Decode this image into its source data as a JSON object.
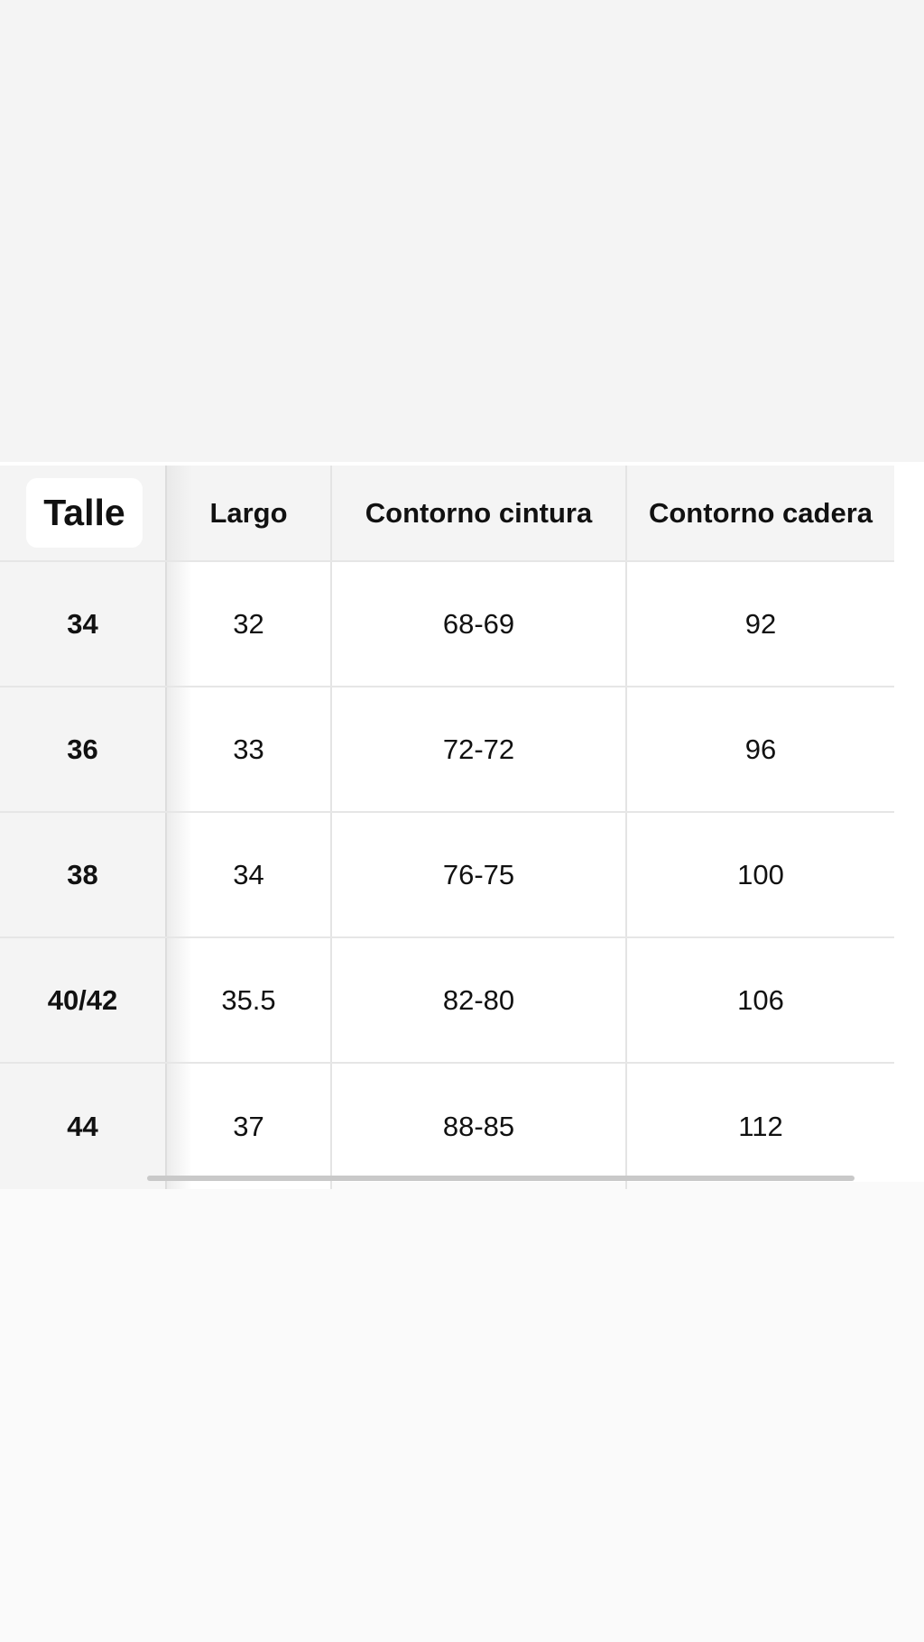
{
  "table": {
    "headers": [
      "Talle",
      "Largo",
      "Contorno cintura",
      "Contorno cadera"
    ],
    "rows": [
      [
        "34",
        "32",
        "68-69",
        "92"
      ],
      [
        "36",
        "33",
        "72-72",
        "96"
      ],
      [
        "38",
        "34",
        "76-75",
        "100"
      ],
      [
        "40/42",
        "35.5",
        "82-80",
        "106"
      ],
      [
        "44",
        "37",
        "88-85",
        "112"
      ]
    ]
  }
}
